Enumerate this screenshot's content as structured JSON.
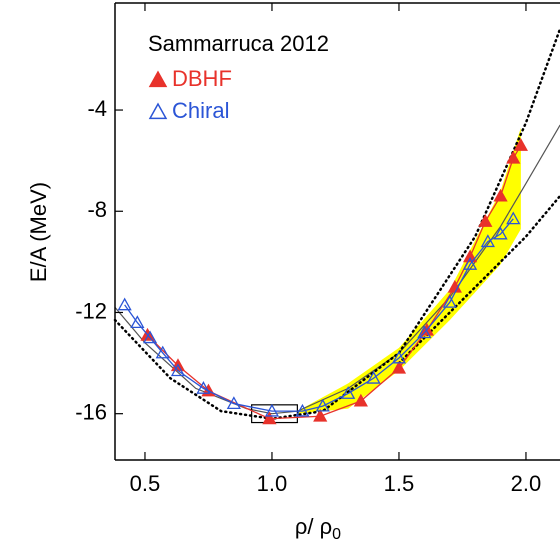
{
  "chart_data": {
    "type": "scatter",
    "legend_title": "Sammarruca 2012",
    "ylabel": "E/A (MeV)",
    "xlabel": "ρ/ ρ",
    "xlabel_sub": "0",
    "xlim": [
      0.382,
      2.134
    ],
    "ylim": [
      -17.83,
      0.23
    ],
    "xticks": [
      0.5,
      {
        "value": 1.0,
        "label": "1.0"
      },
      1.5,
      {
        "value": 2.0,
        "label": "2.0"
      }
    ],
    "yticks": [
      -4,
      -8,
      -12,
      -16
    ],
    "series": [
      {
        "name": "DBHF",
        "color": "#e8322b",
        "marker": "filled-triangle",
        "x": [
          0.51,
          0.63,
          0.75,
          0.99,
          1.19,
          1.35,
          1.5,
          1.61,
          1.72,
          1.78,
          1.84,
          1.9,
          1.95,
          1.98
        ],
        "values": [
          -12.9,
          -14.1,
          -15.1,
          -16.2,
          -16.1,
          -15.5,
          -14.2,
          -12.7,
          -11.0,
          -9.8,
          -8.4,
          -7.4,
          -5.9,
          -5.4
        ]
      },
      {
        "name": "Chiral",
        "color": "#2b55d6",
        "marker": "open-triangle",
        "x": [
          0.42,
          0.47,
          0.52,
          0.57,
          0.63,
          0.73,
          0.85,
          1.0,
          1.12,
          1.2,
          1.3,
          1.4,
          1.5,
          1.6,
          1.7,
          1.78,
          1.85,
          1.9,
          1.95
        ],
        "values": [
          -11.7,
          -12.4,
          -13.0,
          -13.6,
          -14.3,
          -15.0,
          -15.6,
          -15.9,
          -15.9,
          -15.7,
          -15.2,
          -14.6,
          -13.8,
          -12.8,
          -11.6,
          -10.1,
          -9.2,
          -8.9,
          -8.3
        ]
      }
    ],
    "band": {
      "color": "#ffff00",
      "x": [
        1.1,
        1.3,
        1.5,
        1.7,
        1.9,
        1.98
      ],
      "upper": [
        -15.9,
        -14.8,
        -13.4,
        -11.1,
        -7.2,
        -4.7
      ],
      "lower": [
        -16.0,
        -15.8,
        -14.3,
        -12.3,
        -10.1,
        -8.7
      ]
    },
    "curves": [
      {
        "color": "#555555",
        "dash": "solid",
        "x": [
          0.382,
          0.5,
          0.7,
          0.9,
          1.0,
          1.1,
          1.3,
          1.5,
          1.7,
          1.9,
          2.0,
          2.134
        ],
        "values": [
          -11.8,
          -13.2,
          -15.0,
          -15.8,
          -16.0,
          -15.9,
          -15.0,
          -13.6,
          -11.4,
          -8.6,
          -6.9,
          -4.6
        ]
      },
      {
        "color": "#000000",
        "dash": "dotted",
        "x": [
          0.382,
          0.6,
          0.8,
          1.0,
          1.2,
          1.5,
          1.8,
          2.0,
          2.134
        ],
        "values": [
          -12.3,
          -14.6,
          -15.9,
          -16.2,
          -15.9,
          -13.6,
          -9.0,
          -4.5,
          -0.8
        ]
      },
      {
        "color": "#000000",
        "dash": "dotted",
        "x": [
          1.5,
          1.8,
          2.0,
          2.134
        ],
        "values": [
          -14.0,
          -11.0,
          -9.0,
          -7.4
        ]
      }
    ],
    "highlight_box": {
      "x": [
        0.92,
        1.1
      ],
      "y": [
        -16.35,
        -15.65
      ]
    }
  }
}
